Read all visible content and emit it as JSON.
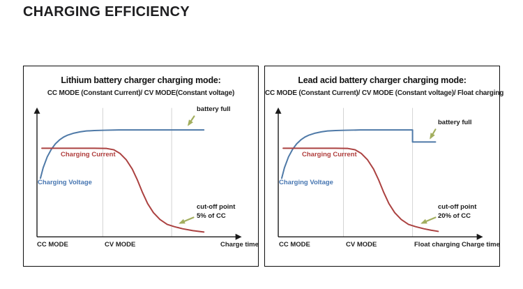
{
  "page": {
    "title": "CHARGING EFFICIENCY"
  },
  "colors": {
    "charging_voltage": "#4e79a7",
    "charging_current": "#ab4140",
    "annotation_arrow": "#a2ae5e",
    "gridline": "#d4d4d4",
    "axis": "#1a1a1a",
    "panel_border": "#0b0b0b",
    "text": "#1a1a1a"
  },
  "panels": [
    {
      "title": "Lithium battery charger charging mode:",
      "subtitle": "CC MODE (Constant Current)/ CV MODE(Constant voltage)",
      "labels": {
        "battery_full": "battery full",
        "charging_current": "Charging Current",
        "charging_voltage": "Charging Voltage",
        "cutoff_point": "cut-off point",
        "cutoff_value": "5% of CC"
      },
      "x_axis_labels": [
        "CC MODE",
        "CV MODE",
        "Charge time"
      ]
    },
    {
      "title": "Lead acid battery charger charging mode:",
      "subtitle": "CC MODE (Constant Current)/ CV MODE (Constant voltage)/ Float charging",
      "labels": {
        "battery_full": "battery full",
        "charging_current": "Charging Current",
        "charging_voltage": "Charging Voltage",
        "cutoff_point": "cut-off point",
        "cutoff_value": "20% of CC"
      },
      "x_axis_labels": [
        "CC MODE",
        "CV MODE",
        "Float charging",
        "Charge time"
      ]
    }
  ],
  "chart_data": [
    {
      "type": "line",
      "title": "Lithium battery charger charging mode:",
      "subtitle": "CC MODE (Constant Current)/ CV MODE(Constant voltage)",
      "xlabel": "Charge time",
      "ylabel": "",
      "grid": false,
      "axis_ticks": "none",
      "x_range_normalized": [
        0,
        1
      ],
      "y_range_normalized": [
        0,
        1
      ],
      "region_boundaries_x": [
        0.321,
        0.657
      ],
      "regions": [
        {
          "label": "CC MODE",
          "x_start": 0,
          "x_end": 0.321
        },
        {
          "label": "CV MODE",
          "x_start": 0.321,
          "x_end": 1
        }
      ],
      "series": [
        {
          "name": "Charging Voltage",
          "color": "#4e79a7",
          "points": [
            [
              0.017,
              0.45
            ],
            [
              0.03,
              0.53
            ],
            [
              0.05,
              0.614
            ],
            [
              0.07,
              0.672
            ],
            [
              0.09,
              0.714
            ],
            [
              0.11,
              0.744
            ],
            [
              0.13,
              0.766
            ],
            [
              0.15,
              0.781
            ],
            [
              0.18,
              0.796
            ],
            [
              0.21,
              0.806
            ],
            [
              0.24,
              0.812
            ],
            [
              0.28,
              0.816
            ],
            [
              0.33,
              0.818
            ],
            [
              0.4,
              0.82
            ],
            [
              0.814,
              0.82
            ]
          ]
        },
        {
          "name": "Charging Current",
          "color": "#ab4140",
          "points": [
            [
              0.024,
              0.68
            ],
            [
              0.15,
              0.68
            ],
            [
              0.28,
              0.68
            ],
            [
              0.34,
              0.678
            ],
            [
              0.375,
              0.668
            ],
            [
              0.405,
              0.64
            ],
            [
              0.435,
              0.592
            ],
            [
              0.465,
              0.52
            ],
            [
              0.49,
              0.436
            ],
            [
              0.515,
              0.34
            ],
            [
              0.54,
              0.255
            ],
            [
              0.568,
              0.186
            ],
            [
              0.6,
              0.133
            ],
            [
              0.635,
              0.096
            ],
            [
              0.67,
              0.078
            ],
            [
              0.71,
              0.062
            ],
            [
              0.76,
              0.048
            ],
            [
              0.814,
              0.037
            ]
          ]
        }
      ],
      "annotations": [
        {
          "text": "battery full",
          "x": 0.76,
          "y": 0.82,
          "series": "Charging Voltage"
        },
        {
          "text": "cut-off point 5% of CC",
          "x": 0.67,
          "y": 0.08,
          "series": "Charging Current"
        }
      ],
      "legend_position": "inline-labels"
    },
    {
      "type": "line",
      "title": "Lead acid battery charger charging mode:",
      "subtitle": "CC MODE (Constant Current)/ CV MODE (Constant voltage)/ Float charging",
      "xlabel": "Charge time",
      "ylabel": "",
      "grid": false,
      "axis_ticks": "none",
      "x_range_normalized": [
        0,
        1
      ],
      "y_range_normalized": [
        0,
        1
      ],
      "region_boundaries_x": [
        0.318,
        0.655
      ],
      "regions": [
        {
          "label": "CC MODE",
          "x_start": 0,
          "x_end": 0.318
        },
        {
          "label": "CV MODE",
          "x_start": 0.318,
          "x_end": 0.655
        },
        {
          "label": "Float charging",
          "x_start": 0.655,
          "x_end": 1
        }
      ],
      "series": [
        {
          "name": "Charging Voltage",
          "color": "#4e79a7",
          "points": [
            [
              0.017,
              0.45
            ],
            [
              0.03,
              0.53
            ],
            [
              0.05,
              0.614
            ],
            [
              0.07,
              0.672
            ],
            [
              0.09,
              0.714
            ],
            [
              0.11,
              0.744
            ],
            [
              0.13,
              0.766
            ],
            [
              0.15,
              0.781
            ],
            [
              0.18,
              0.796
            ],
            [
              0.21,
              0.806
            ],
            [
              0.24,
              0.812
            ],
            [
              0.28,
              0.816
            ],
            [
              0.33,
              0.818
            ],
            [
              0.4,
              0.82
            ],
            [
              0.655,
              0.82
            ],
            [
              0.655,
              0.728
            ],
            [
              0.767,
              0.728
            ]
          ]
        },
        {
          "name": "Charging Current",
          "color": "#ab4140",
          "points": [
            [
              0.024,
              0.68
            ],
            [
              0.15,
              0.68
            ],
            [
              0.28,
              0.68
            ],
            [
              0.34,
              0.678
            ],
            [
              0.375,
              0.668
            ],
            [
              0.405,
              0.64
            ],
            [
              0.435,
              0.592
            ],
            [
              0.465,
              0.52
            ],
            [
              0.49,
              0.436
            ],
            [
              0.515,
              0.34
            ],
            [
              0.54,
              0.255
            ],
            [
              0.568,
              0.186
            ],
            [
              0.6,
              0.133
            ],
            [
              0.635,
              0.096
            ],
            [
              0.67,
              0.078
            ],
            [
              0.71,
              0.062
            ],
            [
              0.745,
              0.051
            ],
            [
              0.78,
              0.042
            ]
          ]
        }
      ],
      "annotations": [
        {
          "text": "battery full",
          "x": 0.74,
          "y": 0.728,
          "series": "Charging Voltage"
        },
        {
          "text": "cut-off point 20% of CC",
          "x": 0.67,
          "y": 0.08,
          "series": "Charging Current"
        }
      ],
      "legend_position": "inline-labels"
    }
  ]
}
